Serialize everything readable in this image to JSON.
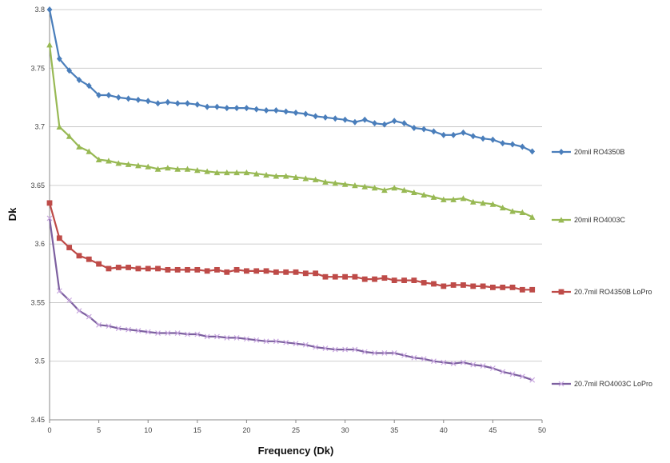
{
  "chart_data": {
    "type": "line",
    "title": "",
    "xlabel": "Frequency (Dk)",
    "ylabel": "Dk",
    "xlim": [
      0,
      50
    ],
    "ylim": [
      3.45,
      3.8
    ],
    "xticks": [
      0,
      5,
      10,
      15,
      20,
      25,
      30,
      35,
      40,
      45,
      50
    ],
    "yticks": [
      3.45,
      3.5,
      3.55,
      3.6,
      3.65,
      3.7,
      3.75,
      3.8
    ],
    "ytick_labels": [
      "3.45",
      "3.5",
      "3.55",
      "3.6",
      "3.65",
      "3.7",
      "3.75",
      "3.8"
    ],
    "grid": "horizontal",
    "legend_position": "right",
    "series": [
      {
        "name": "20mil RO4350B",
        "color": "#4a7ebb",
        "marker": "diamond",
        "x": [
          0,
          1,
          2,
          3,
          4,
          5,
          6,
          7,
          8,
          9,
          10,
          11,
          12,
          13,
          14,
          15,
          16,
          17,
          18,
          19,
          20,
          21,
          22,
          23,
          24,
          25,
          26,
          27,
          28,
          29,
          30,
          31,
          32,
          33,
          34,
          35,
          36,
          37,
          38,
          39,
          40,
          41,
          42,
          43,
          44,
          45,
          46,
          47,
          48,
          49
        ],
        "y": [
          3.8,
          3.758,
          3.748,
          3.74,
          3.735,
          3.727,
          3.727,
          3.725,
          3.724,
          3.723,
          3.722,
          3.72,
          3.721,
          3.72,
          3.72,
          3.719,
          3.717,
          3.717,
          3.716,
          3.716,
          3.716,
          3.715,
          3.714,
          3.714,
          3.713,
          3.712,
          3.711,
          3.709,
          3.708,
          3.707,
          3.706,
          3.704,
          3.706,
          3.703,
          3.702,
          3.705,
          3.703,
          3.699,
          3.698,
          3.696,
          3.693,
          3.693,
          3.695,
          3.692,
          3.69,
          3.689,
          3.686,
          3.685,
          3.683,
          3.679
        ]
      },
      {
        "name": "20mil RO4003C",
        "color": "#98b954",
        "marker": "triangle",
        "x": [
          0,
          1,
          2,
          3,
          4,
          5,
          6,
          7,
          8,
          9,
          10,
          11,
          12,
          13,
          14,
          15,
          16,
          17,
          18,
          19,
          20,
          21,
          22,
          23,
          24,
          25,
          26,
          27,
          28,
          29,
          30,
          31,
          32,
          33,
          34,
          35,
          36,
          37,
          38,
          39,
          40,
          41,
          42,
          43,
          44,
          45,
          46,
          47,
          48,
          49
        ],
        "y": [
          3.77,
          3.7,
          3.692,
          3.683,
          3.679,
          3.672,
          3.671,
          3.669,
          3.668,
          3.667,
          3.666,
          3.664,
          3.665,
          3.664,
          3.664,
          3.663,
          3.662,
          3.661,
          3.661,
          3.661,
          3.661,
          3.66,
          3.659,
          3.658,
          3.658,
          3.657,
          3.656,
          3.655,
          3.653,
          3.652,
          3.651,
          3.65,
          3.649,
          3.648,
          3.646,
          3.648,
          3.646,
          3.644,
          3.642,
          3.64,
          3.638,
          3.638,
          3.639,
          3.636,
          3.635,
          3.634,
          3.631,
          3.628,
          3.627,
          3.623
        ]
      },
      {
        "name": "20.7mil RO4350B LoPro",
        "color": "#be4b48",
        "marker": "square",
        "x": [
          0,
          1,
          2,
          3,
          4,
          5,
          6,
          7,
          8,
          9,
          10,
          11,
          12,
          13,
          14,
          15,
          16,
          17,
          18,
          19,
          20,
          21,
          22,
          23,
          24,
          25,
          26,
          27,
          28,
          29,
          30,
          31,
          32,
          33,
          34,
          35,
          36,
          37,
          38,
          39,
          40,
          41,
          42,
          43,
          44,
          45,
          46,
          47,
          48,
          49
        ],
        "y": [
          3.635,
          3.605,
          3.597,
          3.59,
          3.587,
          3.583,
          3.579,
          3.58,
          3.58,
          3.579,
          3.579,
          3.579,
          3.578,
          3.578,
          3.578,
          3.578,
          3.577,
          3.578,
          3.576,
          3.578,
          3.577,
          3.577,
          3.577,
          3.576,
          3.576,
          3.576,
          3.575,
          3.575,
          3.572,
          3.572,
          3.572,
          3.572,
          3.57,
          3.57,
          3.571,
          3.569,
          3.569,
          3.569,
          3.567,
          3.566,
          3.564,
          3.565,
          3.565,
          3.564,
          3.564,
          3.563,
          3.563,
          3.563,
          3.561,
          3.561
        ]
      },
      {
        "name": "20.7mil RO4003C LoPro",
        "color": "#7d60a0",
        "marker": "cross",
        "x": [
          0,
          1,
          2,
          3,
          4,
          5,
          6,
          7,
          8,
          9,
          10,
          11,
          12,
          13,
          14,
          15,
          16,
          17,
          18,
          19,
          20,
          21,
          22,
          23,
          24,
          25,
          26,
          27,
          28,
          29,
          30,
          31,
          32,
          33,
          34,
          35,
          36,
          37,
          38,
          39,
          40,
          41,
          42,
          43,
          44,
          45,
          46,
          47,
          48,
          49
        ],
        "y": [
          3.622,
          3.56,
          3.552,
          3.543,
          3.538,
          3.531,
          3.53,
          3.528,
          3.527,
          3.526,
          3.525,
          3.524,
          3.524,
          3.524,
          3.523,
          3.523,
          3.521,
          3.521,
          3.52,
          3.52,
          3.519,
          3.518,
          3.517,
          3.517,
          3.516,
          3.515,
          3.514,
          3.512,
          3.511,
          3.51,
          3.51,
          3.51,
          3.508,
          3.507,
          3.507,
          3.507,
          3.505,
          3.503,
          3.502,
          3.5,
          3.499,
          3.498,
          3.499,
          3.497,
          3.496,
          3.494,
          3.491,
          3.489,
          3.487,
          3.484
        ]
      }
    ]
  }
}
